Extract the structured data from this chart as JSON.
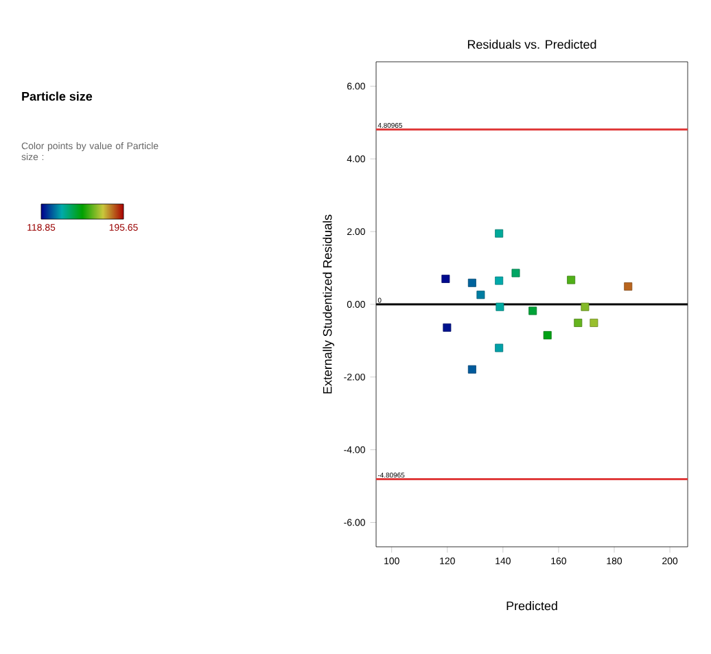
{
  "chart_data": {
    "type": "scatter",
    "title": "Residuals vs. Predicted",
    "subtitle": "Particle size",
    "xlabel": "Predicted",
    "ylabel": "Externally Studentized Residuals",
    "clabel": "Color points by value of Particle size :",
    "x": [
      119.4,
      119.9,
      128.9,
      128.9,
      132.0,
      138.6,
      138.6,
      138.9,
      138.6,
      144.6,
      150.7,
      156.0,
      164.5,
      167.0,
      169.5,
      172.7,
      185.0
    ],
    "values": [
      0.7,
      -0.64,
      0.59,
      -1.79,
      0.26,
      0.65,
      -1.2,
      -0.07,
      1.95,
      0.86,
      -0.18,
      -0.85,
      0.67,
      -0.51,
      -0.07,
      -0.51,
      0.49
    ],
    "cvalues": [
      120,
      121,
      130,
      129,
      133,
      138,
      137,
      139,
      140,
      146,
      151,
      155,
      165,
      167,
      170,
      172,
      186
    ],
    "clim": [
      118.85,
      195.65
    ],
    "cticks": [
      118.85,
      195.65
    ],
    "marker": "square",
    "xlim": [
      94.4,
      206.4
    ],
    "ylim": [
      -6.67,
      6.67
    ],
    "xticks": [
      100,
      120,
      140,
      160,
      180,
      200
    ],
    "yticks": [
      {
        "value": -6,
        "label": "-6.00"
      },
      {
        "value": -4,
        "label": "-4.00"
      },
      {
        "value": -2,
        "label": "-2.00"
      },
      {
        "value": 0,
        "label": "0.00"
      },
      {
        "value": 2,
        "label": "2.00"
      },
      {
        "value": 4,
        "label": "4.00"
      },
      {
        "value": 6,
        "label": "6.00"
      }
    ],
    "ref_lines": [
      {
        "axis": "y",
        "value": 4.80965,
        "label": "4.80965",
        "color": "#e03c3c"
      },
      {
        "axis": "y",
        "value": 0,
        "label": "0",
        "color": "#000000"
      },
      {
        "axis": "y",
        "value": -4.80965,
        "label": "-4.80965",
        "color": "#e03c3c"
      }
    ]
  }
}
